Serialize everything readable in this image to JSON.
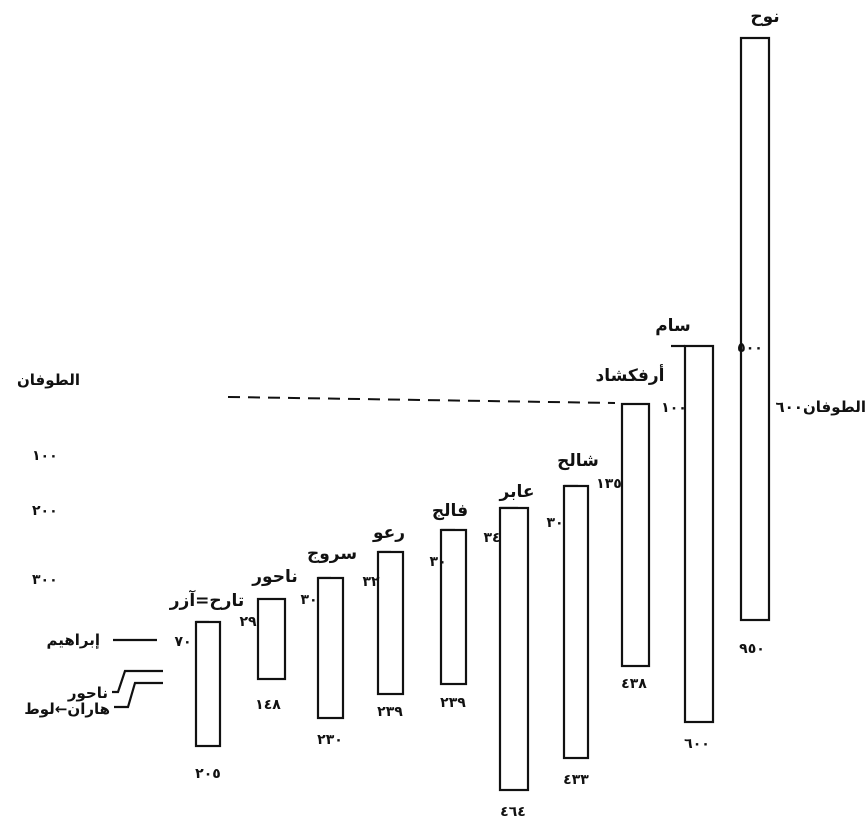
{
  "diagram": {
    "flood_label_left": "الطوفان",
    "flood_label_right": "الطوفان٦٠٠",
    "scale_ticks": [
      "١٠٠",
      "٢٠٠",
      "٣٠٠"
    ],
    "abraham_label": "إبراهيم",
    "nahor_label": "ناحور",
    "haran_label": "هاران←لوط",
    "patriarchs": [
      {
        "name": "نوح",
        "birth_label": "",
        "age_at_child": "٥٠٠",
        "lifespan": "٩٥٠"
      },
      {
        "name": "سام",
        "birth_label": "١٠٠",
        "age_at_child": "",
        "lifespan": "٦٠٠"
      },
      {
        "name": "أرفكشاد",
        "birth_label": "",
        "age_at_child": "",
        "lifespan": "٤٣٨"
      },
      {
        "name": "شالح",
        "birth_label": "١٣٥",
        "age_at_child": "",
        "lifespan": "٤٣٣"
      },
      {
        "name": "عابر",
        "birth_label": "٣٠",
        "age_at_child": "",
        "lifespan": "٤٦٤"
      },
      {
        "name": "فالج",
        "birth_label": "٣٤",
        "age_at_child": "",
        "lifespan": "٢٣٩"
      },
      {
        "name": "رعو",
        "birth_label": "٣٠",
        "age_at_child": "",
        "lifespan": "٢٣٩"
      },
      {
        "name": "سروج",
        "birth_label": "٣٢",
        "age_at_child": "",
        "lifespan": "٢٣٠"
      },
      {
        "name": "ناحور",
        "birth_label": "٣٠",
        "age_at_child": "",
        "lifespan": "١٤٨"
      },
      {
        "name": "تارح=آزر",
        "birth_label": "٢٩",
        "age_at_child": "٧٠",
        "lifespan": "٢٠٥"
      }
    ]
  }
}
